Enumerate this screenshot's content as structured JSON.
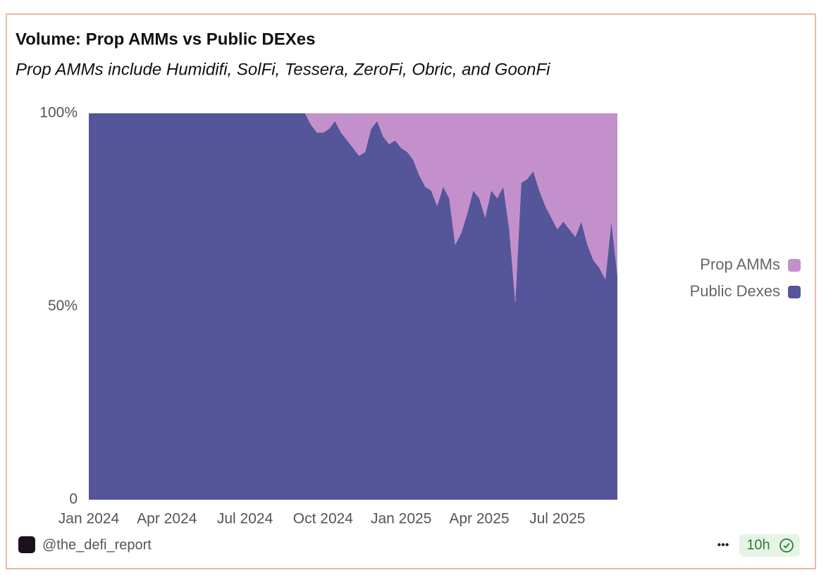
{
  "chart_data": {
    "type": "stacked-area",
    "title": "Volume: Prop AMMs vs Public DEXes",
    "subtitle": "Prop AMMs include Humidifi, SolFi, Tessera, ZeroFi, Obric, and GoonFi",
    "categories": [
      "Jan 2024",
      null,
      null,
      null,
      null,
      null,
      null,
      null,
      null,
      null,
      null,
      null,
      null,
      "Apr 2024",
      null,
      null,
      null,
      null,
      null,
      null,
      null,
      null,
      null,
      null,
      null,
      null,
      "Jul 2024",
      null,
      null,
      null,
      null,
      null,
      null,
      null,
      null,
      null,
      null,
      null,
      null,
      "Oct 2024",
      null,
      null,
      null,
      null,
      null,
      null,
      null,
      null,
      null,
      null,
      null,
      null,
      "Jan 2025",
      null,
      null,
      null,
      null,
      null,
      null,
      null,
      null,
      null,
      null,
      null,
      null,
      "Apr 2025",
      null,
      null,
      null,
      null,
      null,
      null,
      null,
      null,
      null,
      null,
      null,
      null,
      "Jul 2025",
      null,
      null,
      null,
      null,
      null,
      null,
      null,
      null,
      null,
      null
    ],
    "series": [
      {
        "name": "Prop AMMs",
        "color": "#c490cb",
        "values": [
          0,
          0,
          0,
          0,
          0,
          0,
          0,
          0,
          0,
          0,
          0,
          0,
          0,
          0,
          0,
          0,
          0,
          0,
          0,
          0,
          0,
          0,
          0,
          0,
          0,
          0,
          0,
          0,
          0,
          0,
          0,
          0,
          0,
          0,
          0,
          0,
          0,
          3,
          5,
          5,
          4,
          2,
          5,
          7,
          9,
          11,
          10,
          4,
          2,
          6,
          8,
          7,
          9,
          10,
          12,
          16,
          19,
          20,
          24,
          19,
          22,
          34,
          31,
          26,
          20,
          22,
          27,
          20,
          22,
          19,
          30,
          49,
          18,
          17,
          15,
          20,
          24,
          27,
          30,
          28,
          30,
          32,
          28,
          34,
          38,
          40,
          43,
          28,
          42
        ]
      },
      {
        "name": "Public Dexes",
        "color": "#55559a",
        "values": [
          100,
          100,
          100,
          100,
          100,
          100,
          100,
          100,
          100,
          100,
          100,
          100,
          100,
          100,
          100,
          100,
          100,
          100,
          100,
          100,
          100,
          100,
          100,
          100,
          100,
          100,
          100,
          100,
          100,
          100,
          100,
          100,
          100,
          100,
          100,
          100,
          100,
          97,
          95,
          95,
          96,
          98,
          95,
          93,
          91,
          89,
          90,
          96,
          98,
          94,
          92,
          93,
          91,
          90,
          88,
          84,
          81,
          80,
          76,
          81,
          78,
          66,
          69,
          74,
          80,
          78,
          73,
          80,
          78,
          81,
          70,
          51,
          82,
          83,
          85,
          80,
          76,
          73,
          70,
          72,
          70,
          68,
          72,
          66,
          62,
          60,
          57,
          72,
          58
        ]
      }
    ],
    "ylim": [
      0,
      100
    ],
    "yticks": [
      0,
      {
        "value": 50,
        "label": "50%"
      },
      {
        "value": 100,
        "label": "100%"
      }
    ],
    "legend": "right"
  },
  "footer": {
    "handle": "@the_defi_report",
    "menu": "•••",
    "time": "10h"
  }
}
